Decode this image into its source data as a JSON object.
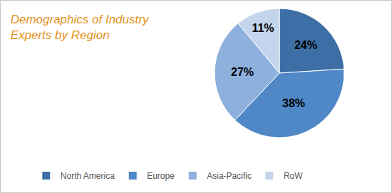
{
  "chart_data": {
    "type": "pie",
    "title": "Demographics of Industry Experts by Region",
    "categories": [
      "North America",
      "Europe",
      "Asia-Pacific",
      "RoW"
    ],
    "values": [
      24,
      38,
      27,
      11
    ],
    "value_labels": [
      "24%",
      "38%",
      "27%",
      "11%"
    ],
    "colors": [
      "#3d6fa6",
      "#4f87c7",
      "#8db0dc",
      "#c3d5ec"
    ],
    "data_labels": true,
    "legend": "bottom"
  }
}
